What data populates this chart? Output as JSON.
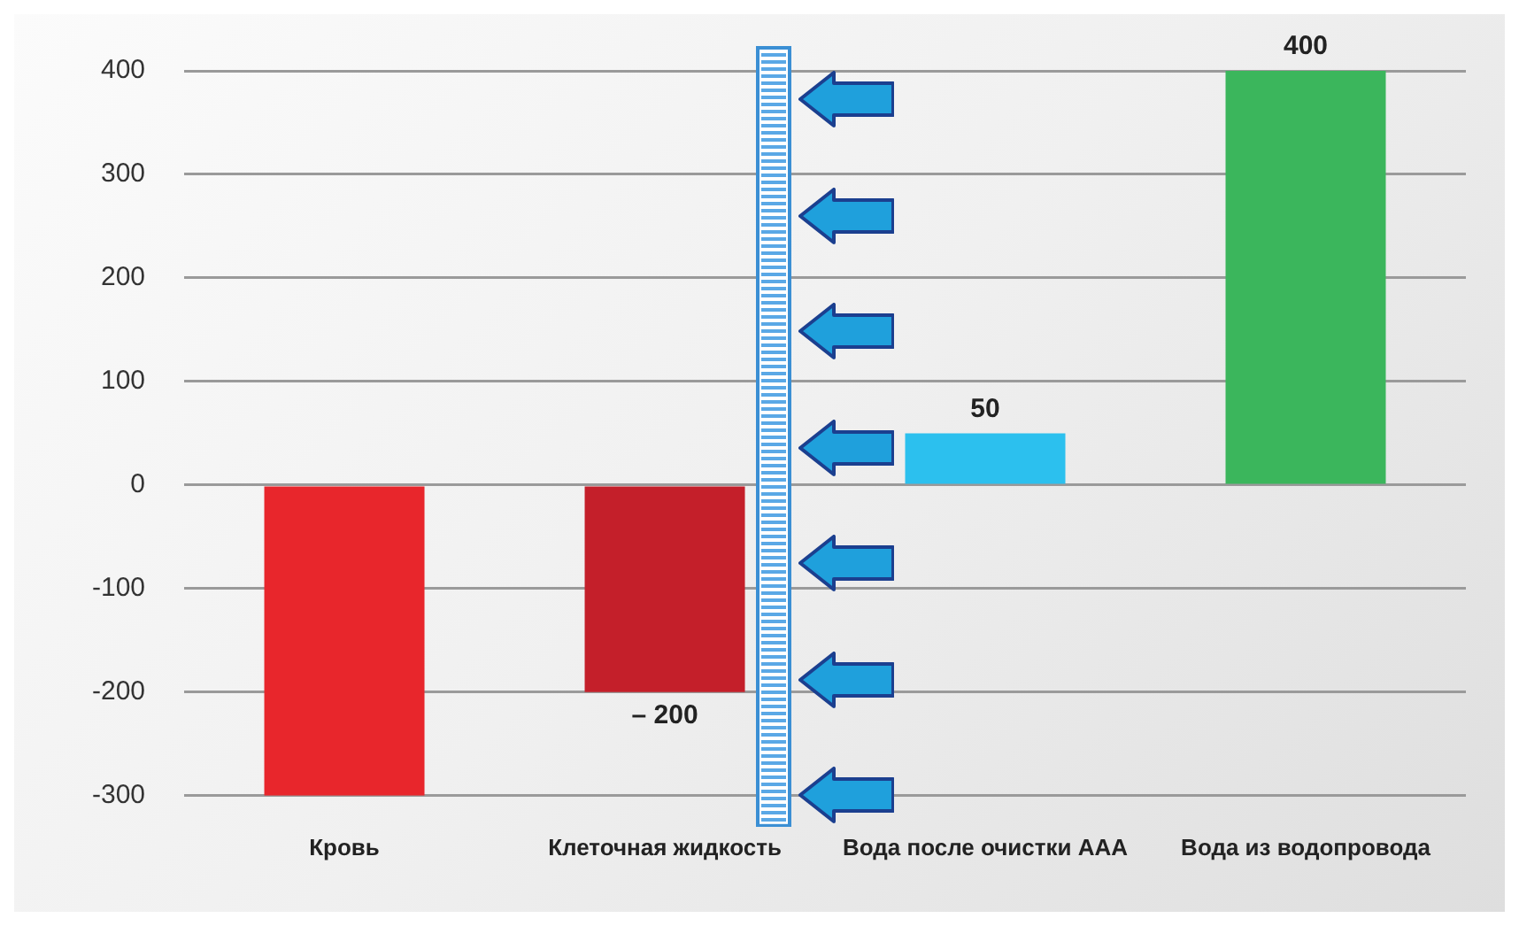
{
  "chart_data": {
    "type": "bar",
    "categories": [
      "Кровь",
      "Клеточная жидкость",
      "Вода после очистки AAA",
      "Вода из водопровода"
    ],
    "values": [
      -300,
      -200,
      50,
      400
    ],
    "colors": [
      "#e8262c",
      "#c41f2a",
      "#2cc0ee",
      "#3bb65c"
    ],
    "value_labels": [
      null,
      "– 200",
      "50",
      "400"
    ],
    "ylim": [
      -300,
      400
    ],
    "yticks": [
      -300,
      -200,
      -100,
      0,
      100,
      200,
      300,
      400
    ],
    "grid": "y"
  }
}
